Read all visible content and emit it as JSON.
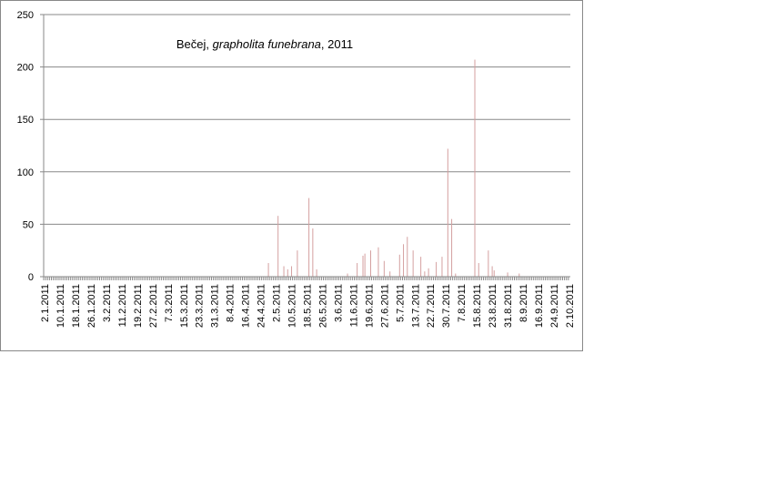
{
  "chart_data": {
    "type": "bar",
    "title": [
      "Bečej, ",
      "grapholita funebrana",
      ", 2011"
    ],
    "color": "#d4a0a0",
    "ylim": [
      0,
      250
    ],
    "yticks": [
      0,
      50,
      100,
      150,
      200,
      250
    ],
    "grid": true,
    "categories": [
      "2.1.2011",
      null,
      null,
      null,
      null,
      null,
      null,
      null,
      "10.1.2011",
      null,
      null,
      null,
      null,
      null,
      null,
      null,
      "18.1.2011",
      null,
      null,
      null,
      null,
      null,
      null,
      null,
      "26.1.2011",
      null,
      null,
      null,
      null,
      null,
      null,
      null,
      "3.2.2011",
      null,
      null,
      null,
      null,
      null,
      null,
      null,
      "11.2.2011",
      null,
      null,
      null,
      null,
      null,
      null,
      null,
      "19.2.2011",
      null,
      null,
      null,
      null,
      null,
      null,
      null,
      "27.2.2011",
      null,
      null,
      null,
      null,
      null,
      null,
      null,
      "7.3.2011",
      null,
      null,
      null,
      null,
      null,
      null,
      null,
      "15.3.2011",
      null,
      null,
      null,
      null,
      null,
      null,
      null,
      "23.3.2011",
      null,
      null,
      null,
      null,
      null,
      null,
      null,
      "31.3.2011",
      null,
      null,
      null,
      null,
      null,
      null,
      null,
      "8.4.2011",
      null,
      null,
      null,
      null,
      null,
      null,
      null,
      "16.4.2011",
      null,
      null,
      null,
      null,
      null,
      null,
      null,
      "24.4.2011",
      null,
      null,
      null,
      null,
      null,
      null,
      null,
      "2.5.2011",
      null,
      null,
      null,
      null,
      null,
      null,
      null,
      "10.5.2011",
      null,
      null,
      null,
      null,
      null,
      null,
      null,
      "18.5.2011",
      null,
      null,
      null,
      null,
      null,
      null,
      null,
      "26.5.2011",
      null,
      null,
      null,
      null,
      null,
      null,
      null,
      "3.6.2011",
      null,
      null,
      null,
      null,
      null,
      null,
      null,
      "11.6.2011",
      null,
      null,
      null,
      null,
      null,
      null,
      null,
      "19.6.2011",
      null,
      null,
      null,
      null,
      null,
      null,
      null,
      "27.6.2011",
      null,
      null,
      null,
      null,
      null,
      null,
      null,
      "5.7.2011",
      null,
      null,
      null,
      null,
      null,
      null,
      null,
      "13.7.2011",
      null,
      null,
      null,
      null,
      null,
      null,
      null,
      "22.7.2011",
      null,
      null,
      null,
      null,
      null,
      null,
      null,
      "30.7.2011",
      null,
      null,
      null,
      null,
      null,
      null,
      null,
      "7.8.2011",
      null,
      null,
      null,
      null,
      null,
      null,
      null,
      "15.8.2011",
      null,
      null,
      null,
      null,
      null,
      null,
      null,
      "23.8.2011",
      null,
      null,
      null,
      null,
      null,
      null,
      null,
      "31.8.2011",
      null,
      null,
      null,
      null,
      null,
      null,
      null,
      "8.9.2011",
      null,
      null,
      null,
      null,
      null,
      null,
      null,
      "16.9.2011",
      null,
      null,
      null,
      null,
      null,
      null,
      null,
      "24.9.2011",
      null,
      null,
      null,
      null,
      null,
      null,
      null,
      "2.10.2011"
    ],
    "values": [
      0,
      0,
      0,
      0,
      0,
      0,
      0,
      0,
      0,
      0,
      0,
      0,
      0,
      0,
      0,
      0,
      0,
      0,
      0,
      0,
      0,
      0,
      0,
      0,
      0,
      0,
      0,
      0,
      0,
      0,
      0,
      0,
      0,
      0,
      0,
      0,
      0,
      0,
      0,
      0,
      0,
      0,
      0,
      0,
      0,
      0,
      0,
      0,
      0,
      0,
      0,
      0,
      0,
      0,
      0,
      0,
      0,
      0,
      0,
      0,
      0,
      0,
      0,
      0,
      0,
      0,
      0,
      0,
      0,
      0,
      0,
      0,
      0,
      0,
      0,
      0,
      0,
      0,
      0,
      0,
      0,
      0,
      0,
      0,
      0,
      0,
      0,
      0,
      0,
      0,
      0,
      0,
      0,
      0,
      0,
      0,
      0,
      0,
      0,
      0,
      0,
      0,
      0,
      0,
      0,
      0,
      0,
      0,
      0,
      0,
      0,
      0,
      0,
      0,
      0,
      0,
      13,
      0,
      0,
      0,
      0,
      58,
      0,
      0,
      10,
      0,
      7,
      0,
      10,
      0,
      0,
      25,
      0,
      0,
      0,
      0,
      0,
      75,
      0,
      46,
      0,
      7,
      0,
      0,
      0,
      0,
      0,
      0,
      0,
      0,
      0,
      0,
      0,
      0,
      0,
      0,
      0,
      3,
      0,
      0,
      0,
      0,
      13,
      0,
      0,
      20,
      22,
      0,
      0,
      25,
      0,
      0,
      0,
      28,
      0,
      0,
      15,
      0,
      0,
      5,
      0,
      0,
      0,
      0,
      21,
      0,
      31,
      0,
      38,
      0,
      0,
      25,
      0,
      0,
      0,
      19,
      0,
      5,
      0,
      8,
      0,
      0,
      0,
      14,
      0,
      0,
      19,
      0,
      0,
      122,
      0,
      55,
      0,
      3,
      0,
      0,
      0,
      0,
      0,
      0,
      0,
      0,
      0,
      207,
      0,
      13,
      0,
      0,
      0,
      0,
      25,
      0,
      10,
      6,
      0,
      0,
      0,
      0,
      0,
      0,
      4,
      0,
      0,
      0,
      0,
      0,
      3,
      0,
      0,
      0,
      0,
      0,
      0,
      0,
      0,
      0,
      0,
      0,
      0,
      0,
      0,
      0,
      0,
      0,
      0,
      0,
      0,
      0,
      0,
      0,
      0,
      0,
      0
    ]
  }
}
